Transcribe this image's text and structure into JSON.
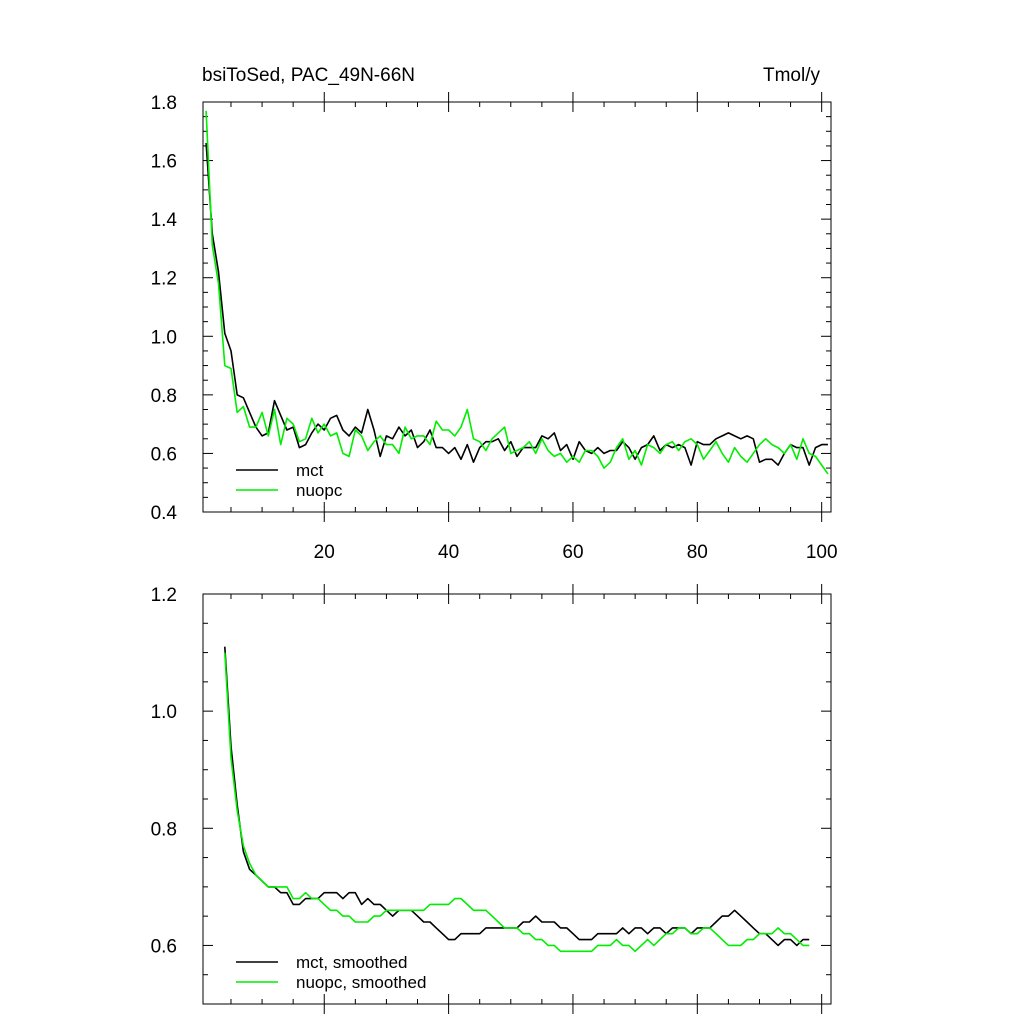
{
  "chart_data": [
    {
      "type": "line",
      "title_left": "bsiToSed, PAC_49N-66N",
      "title_right": "Tmol/y",
      "xlim": [
        0.5,
        101.5
      ],
      "ylim": [
        0.4,
        1.8
      ],
      "yticks": [
        "0.4",
        "0.6",
        "0.8",
        "1.0",
        "1.2",
        "1.4",
        "1.6",
        "1.8"
      ],
      "xticks": [
        "20",
        "40",
        "60",
        "80",
        "100"
      ],
      "series": [
        {
          "name": "mct",
          "color": "#000000",
          "x": [
            1,
            2,
            3,
            4,
            5,
            6,
            7,
            8,
            9,
            10,
            11,
            12,
            13,
            14,
            15,
            16,
            17,
            18,
            19,
            20,
            21,
            22,
            23,
            24,
            25,
            26,
            27,
            28,
            29,
            30,
            31,
            32,
            33,
            34,
            35,
            36,
            37,
            38,
            39,
            40,
            41,
            42,
            43,
            44,
            45,
            46,
            47,
            48,
            49,
            50,
            51,
            52,
            53,
            54,
            55,
            56,
            57,
            58,
            59,
            60,
            61,
            62,
            63,
            64,
            65,
            66,
            67,
            68,
            69,
            70,
            71,
            72,
            73,
            74,
            75,
            76,
            77,
            78,
            79,
            80,
            81,
            82,
            83,
            84,
            85,
            86,
            87,
            88,
            89,
            90,
            91,
            92,
            93,
            94,
            95,
            96,
            97,
            98,
            99,
            100,
            101
          ],
          "values": [
            1.66,
            1.35,
            1.22,
            1.01,
            0.95,
            0.8,
            0.79,
            0.74,
            0.69,
            0.66,
            0.67,
            0.78,
            0.73,
            0.68,
            0.69,
            0.62,
            0.63,
            0.67,
            0.7,
            0.68,
            0.72,
            0.73,
            0.68,
            0.66,
            0.69,
            0.67,
            0.75,
            0.68,
            0.59,
            0.66,
            0.65,
            0.69,
            0.66,
            0.68,
            0.62,
            0.64,
            0.68,
            0.62,
            0.62,
            0.6,
            0.62,
            0.58,
            0.63,
            0.57,
            0.62,
            0.64,
            0.64,
            0.65,
            0.61,
            0.64,
            0.59,
            0.62,
            0.62,
            0.62,
            0.66,
            0.65,
            0.67,
            0.61,
            0.63,
            0.58,
            0.64,
            0.61,
            0.6,
            0.62,
            0.6,
            0.61,
            0.61,
            0.64,
            0.62,
            0.58,
            0.62,
            0.63,
            0.66,
            0.61,
            0.63,
            0.62,
            0.63,
            0.62,
            0.56,
            0.64,
            0.63,
            0.63,
            0.65,
            0.66,
            0.67,
            0.66,
            0.65,
            0.66,
            0.65,
            0.57,
            0.58,
            0.58,
            0.56,
            0.6,
            0.63,
            0.62,
            0.62,
            0.56,
            0.62,
            0.63,
            0.63
          ]
        },
        {
          "name": "nuopc",
          "color": "#00ee00",
          "x": [
            1,
            2,
            3,
            4,
            5,
            6,
            7,
            8,
            9,
            10,
            11,
            12,
            13,
            14,
            15,
            16,
            17,
            18,
            19,
            20,
            21,
            22,
            23,
            24,
            25,
            26,
            27,
            28,
            29,
            30,
            31,
            32,
            33,
            34,
            35,
            36,
            37,
            38,
            39,
            40,
            41,
            42,
            43,
            44,
            45,
            46,
            47,
            48,
            49,
            50,
            51,
            52,
            53,
            54,
            55,
            56,
            57,
            58,
            59,
            60,
            61,
            62,
            63,
            64,
            65,
            66,
            67,
            68,
            69,
            70,
            71,
            72,
            73,
            74,
            75,
            76,
            77,
            78,
            79,
            80,
            81,
            82,
            83,
            84,
            85,
            86,
            87,
            88,
            89,
            90,
            91,
            92,
            93,
            94,
            95,
            96,
            97,
            98,
            99,
            100,
            101
          ],
          "values": [
            1.77,
            1.31,
            1.18,
            0.9,
            0.89,
            0.74,
            0.76,
            0.69,
            0.69,
            0.74,
            0.66,
            0.75,
            0.63,
            0.72,
            0.7,
            0.64,
            0.65,
            0.72,
            0.67,
            0.7,
            0.66,
            0.67,
            0.6,
            0.59,
            0.68,
            0.66,
            0.61,
            0.64,
            0.66,
            0.63,
            0.63,
            0.6,
            0.69,
            0.65,
            0.66,
            0.66,
            0.63,
            0.71,
            0.68,
            0.68,
            0.66,
            0.69,
            0.75,
            0.65,
            0.64,
            0.61,
            0.65,
            0.67,
            0.69,
            0.6,
            0.61,
            0.62,
            0.64,
            0.6,
            0.65,
            0.61,
            0.59,
            0.6,
            0.57,
            0.59,
            0.57,
            0.61,
            0.61,
            0.59,
            0.55,
            0.57,
            0.62,
            0.65,
            0.58,
            0.61,
            0.56,
            0.63,
            0.62,
            0.6,
            0.63,
            0.64,
            0.61,
            0.64,
            0.65,
            0.63,
            0.58,
            0.61,
            0.64,
            0.6,
            0.57,
            0.62,
            0.59,
            0.57,
            0.6,
            0.63,
            0.65,
            0.63,
            0.62,
            0.6,
            0.63,
            0.58,
            0.65,
            0.6,
            0.59,
            0.56,
            0.53
          ]
        }
      ]
    },
    {
      "type": "line",
      "xlim": [
        0.5,
        101.5
      ],
      "ylim": [
        0.5,
        1.2
      ],
      "yticks": [
        "0.6",
        "0.8",
        "1.0",
        "1.2"
      ],
      "series": [
        {
          "name": "mct, smoothed",
          "color": "#000000",
          "x": [
            4,
            5,
            6,
            7,
            8,
            9,
            10,
            11,
            12,
            13,
            14,
            15,
            16,
            17,
            18,
            19,
            20,
            21,
            22,
            23,
            24,
            25,
            26,
            27,
            28,
            29,
            30,
            31,
            32,
            33,
            34,
            35,
            36,
            37,
            38,
            39,
            40,
            41,
            42,
            43,
            44,
            45,
            46,
            47,
            48,
            49,
            50,
            51,
            52,
            53,
            54,
            55,
            56,
            57,
            58,
            59,
            60,
            61,
            62,
            63,
            64,
            65,
            66,
            67,
            68,
            69,
            70,
            71,
            72,
            73,
            74,
            75,
            76,
            77,
            78,
            79,
            80,
            81,
            82,
            83,
            84,
            85,
            86,
            87,
            88,
            89,
            90,
            91,
            92,
            93,
            94,
            95,
            96,
            97,
            98
          ],
          "values": [
            1.11,
            0.94,
            0.84,
            0.76,
            0.73,
            0.72,
            0.71,
            0.7,
            0.7,
            0.69,
            0.69,
            0.67,
            0.67,
            0.68,
            0.68,
            0.68,
            0.69,
            0.69,
            0.69,
            0.68,
            0.69,
            0.69,
            0.67,
            0.68,
            0.67,
            0.67,
            0.66,
            0.65,
            0.66,
            0.66,
            0.66,
            0.65,
            0.64,
            0.64,
            0.63,
            0.62,
            0.61,
            0.61,
            0.62,
            0.62,
            0.62,
            0.62,
            0.63,
            0.63,
            0.63,
            0.63,
            0.63,
            0.63,
            0.64,
            0.64,
            0.65,
            0.64,
            0.64,
            0.64,
            0.63,
            0.63,
            0.62,
            0.61,
            0.61,
            0.61,
            0.62,
            0.62,
            0.62,
            0.62,
            0.63,
            0.62,
            0.63,
            0.63,
            0.62,
            0.63,
            0.63,
            0.62,
            0.63,
            0.63,
            0.63,
            0.62,
            0.63,
            0.63,
            0.63,
            0.64,
            0.65,
            0.65,
            0.66,
            0.65,
            0.64,
            0.63,
            0.62,
            0.62,
            0.61,
            0.6,
            0.61,
            0.61,
            0.6,
            0.61,
            0.61
          ]
        },
        {
          "name": "nuopc, smoothed",
          "color": "#00ee00",
          "x": [
            4,
            5,
            6,
            7,
            8,
            9,
            10,
            11,
            12,
            13,
            14,
            15,
            16,
            17,
            18,
            19,
            20,
            21,
            22,
            23,
            24,
            25,
            26,
            27,
            28,
            29,
            30,
            31,
            32,
            33,
            34,
            35,
            36,
            37,
            38,
            39,
            40,
            41,
            42,
            43,
            44,
            45,
            46,
            47,
            48,
            49,
            50,
            51,
            52,
            53,
            54,
            55,
            56,
            57,
            58,
            59,
            60,
            61,
            62,
            63,
            64,
            65,
            66,
            67,
            68,
            69,
            70,
            71,
            72,
            73,
            74,
            75,
            76,
            77,
            78,
            79,
            80,
            81,
            82,
            83,
            84,
            85,
            86,
            87,
            88,
            89,
            90,
            91,
            92,
            93,
            94,
            95,
            96,
            97,
            98
          ],
          "values": [
            1.1,
            0.92,
            0.83,
            0.77,
            0.74,
            0.72,
            0.71,
            0.7,
            0.7,
            0.7,
            0.7,
            0.68,
            0.68,
            0.69,
            0.68,
            0.68,
            0.67,
            0.66,
            0.66,
            0.65,
            0.65,
            0.64,
            0.64,
            0.64,
            0.65,
            0.65,
            0.66,
            0.66,
            0.66,
            0.66,
            0.66,
            0.66,
            0.66,
            0.67,
            0.67,
            0.67,
            0.67,
            0.68,
            0.68,
            0.67,
            0.66,
            0.66,
            0.66,
            0.65,
            0.64,
            0.63,
            0.63,
            0.63,
            0.62,
            0.62,
            0.61,
            0.61,
            0.6,
            0.6,
            0.59,
            0.59,
            0.59,
            0.59,
            0.59,
            0.59,
            0.6,
            0.6,
            0.6,
            0.61,
            0.6,
            0.6,
            0.59,
            0.6,
            0.61,
            0.6,
            0.61,
            0.62,
            0.62,
            0.63,
            0.63,
            0.62,
            0.62,
            0.63,
            0.63,
            0.62,
            0.61,
            0.6,
            0.6,
            0.6,
            0.61,
            0.61,
            0.62,
            0.62,
            0.62,
            0.63,
            0.62,
            0.62,
            0.61,
            0.6,
            0.6
          ]
        }
      ]
    }
  ]
}
